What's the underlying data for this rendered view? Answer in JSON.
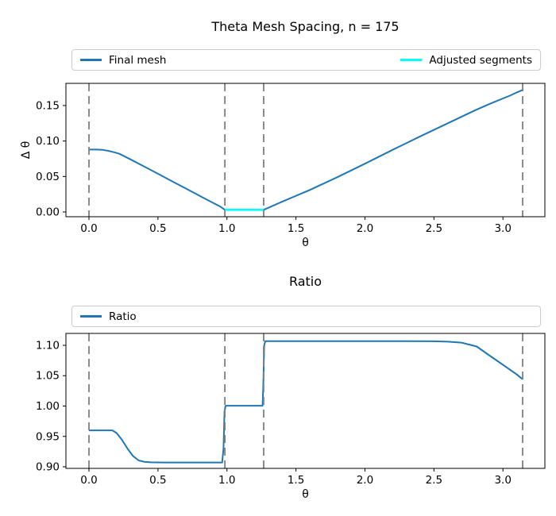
{
  "figure": {
    "background": "#ffffff"
  },
  "colors": {
    "primary_line": "#1f77b4",
    "adjusted_line": "#00ffff",
    "vline": "#7f7f7f",
    "legend_border": "#cccccc",
    "axes_frame": "#000000"
  },
  "chart_data": [
    {
      "type": "line",
      "title": "Theta Mesh Spacing, n = 175",
      "xlabel": "θ",
      "ylabel": "Δ θ",
      "xlim": [
        -0.167,
        3.304
      ],
      "ylim": [
        -0.0067,
        0.1813
      ],
      "xticks": [
        0.0,
        0.5,
        1.0,
        1.5,
        2.0,
        2.5,
        3.0
      ],
      "xtick_labels": [
        "0.0",
        "0.5",
        "1.0",
        "1.5",
        "2.0",
        "2.5",
        "3.0"
      ],
      "yticks": [
        0.0,
        0.05,
        0.1,
        0.15
      ],
      "ytick_labels": [
        "0.00",
        "0.05",
        "0.10",
        "0.15"
      ],
      "grid": false,
      "legend": [
        {
          "label": "Final mesh",
          "color": "#1f77b4"
        },
        {
          "label": "Adjusted segments",
          "color": "#00ffff"
        }
      ],
      "vlines": {
        "x": [
          0.0,
          0.985,
          1.266,
          3.143
        ],
        "color": "#7f7f7f",
        "style": "dashed"
      },
      "series": [
        {
          "name": "Final mesh",
          "color": "#1f77b4",
          "linewidth": 2,
          "x": [
            0.0,
            0.06,
            0.1,
            0.14,
            0.18,
            0.22,
            0.3,
            0.4,
            0.5,
            0.6,
            0.7,
            0.8,
            0.9,
            0.95,
            0.985,
            1.266,
            1.4,
            1.6,
            1.8,
            2.0,
            2.2,
            2.4,
            2.6,
            2.8,
            2.9,
            3.0,
            3.05,
            3.1,
            3.143
          ],
          "y": [
            0.088,
            0.088,
            0.0875,
            0.0862,
            0.0843,
            0.082,
            0.0742,
            0.064,
            0.0538,
            0.0435,
            0.0333,
            0.023,
            0.0128,
            0.0077,
            0.003,
            0.003,
            0.0145,
            0.031,
            0.049,
            0.068,
            0.0875,
            0.1065,
            0.125,
            0.1435,
            0.152,
            0.16,
            0.164,
            0.1685,
            0.172
          ]
        },
        {
          "name": "Adjusted segments",
          "color": "#00ffff",
          "linewidth": 2.6,
          "x": [
            0.985,
            1.266
          ],
          "y": [
            0.003,
            0.003
          ]
        }
      ]
    },
    {
      "type": "line",
      "title": "Ratio",
      "xlabel": "θ",
      "ylabel": "",
      "xlim": [
        -0.167,
        3.304
      ],
      "ylim": [
        0.8974,
        1.1196
      ],
      "xticks": [
        0.0,
        0.5,
        1.0,
        1.5,
        2.0,
        2.5,
        3.0
      ],
      "xtick_labels": [
        "0.0",
        "0.5",
        "1.0",
        "1.5",
        "2.0",
        "2.5",
        "3.0"
      ],
      "yticks": [
        0.9,
        0.95,
        1.0,
        1.05,
        1.1
      ],
      "ytick_labels": [
        "0.90",
        "0.95",
        "1.00",
        "1.05",
        "1.10"
      ],
      "grid": false,
      "legend": [
        {
          "label": "Ratio",
          "color": "#1f77b4"
        }
      ],
      "vlines": {
        "x": [
          0.0,
          0.985,
          1.266,
          3.143
        ],
        "color": "#7f7f7f",
        "style": "dashed"
      },
      "series": [
        {
          "name": "Ratio",
          "color": "#1f77b4",
          "linewidth": 2,
          "x": [
            0.0,
            0.17,
            0.2,
            0.24,
            0.28,
            0.32,
            0.36,
            0.4,
            0.45,
            0.55,
            0.7,
            0.85,
            0.965,
            0.975,
            0.982,
            0.99,
            1.05,
            1.15,
            1.25,
            1.258,
            1.264,
            1.27,
            1.278,
            1.4,
            1.7,
            2.0,
            2.3,
            2.5,
            2.6,
            2.7,
            2.81,
            2.9,
            3.0,
            3.1,
            3.143
          ],
          "y": [
            0.96,
            0.96,
            0.9555,
            0.944,
            0.9295,
            0.9175,
            0.9105,
            0.9082,
            0.9073,
            0.9071,
            0.9071,
            0.9071,
            0.9071,
            0.93,
            0.99,
            1.0005,
            1.0005,
            1.0005,
            1.0005,
            1.0005,
            1.04,
            1.1,
            1.1068,
            1.1068,
            1.1068,
            1.1068,
            1.1068,
            1.1066,
            1.106,
            1.1045,
            1.098,
            1.0837,
            1.068,
            1.052,
            1.044
          ]
        }
      ]
    }
  ]
}
